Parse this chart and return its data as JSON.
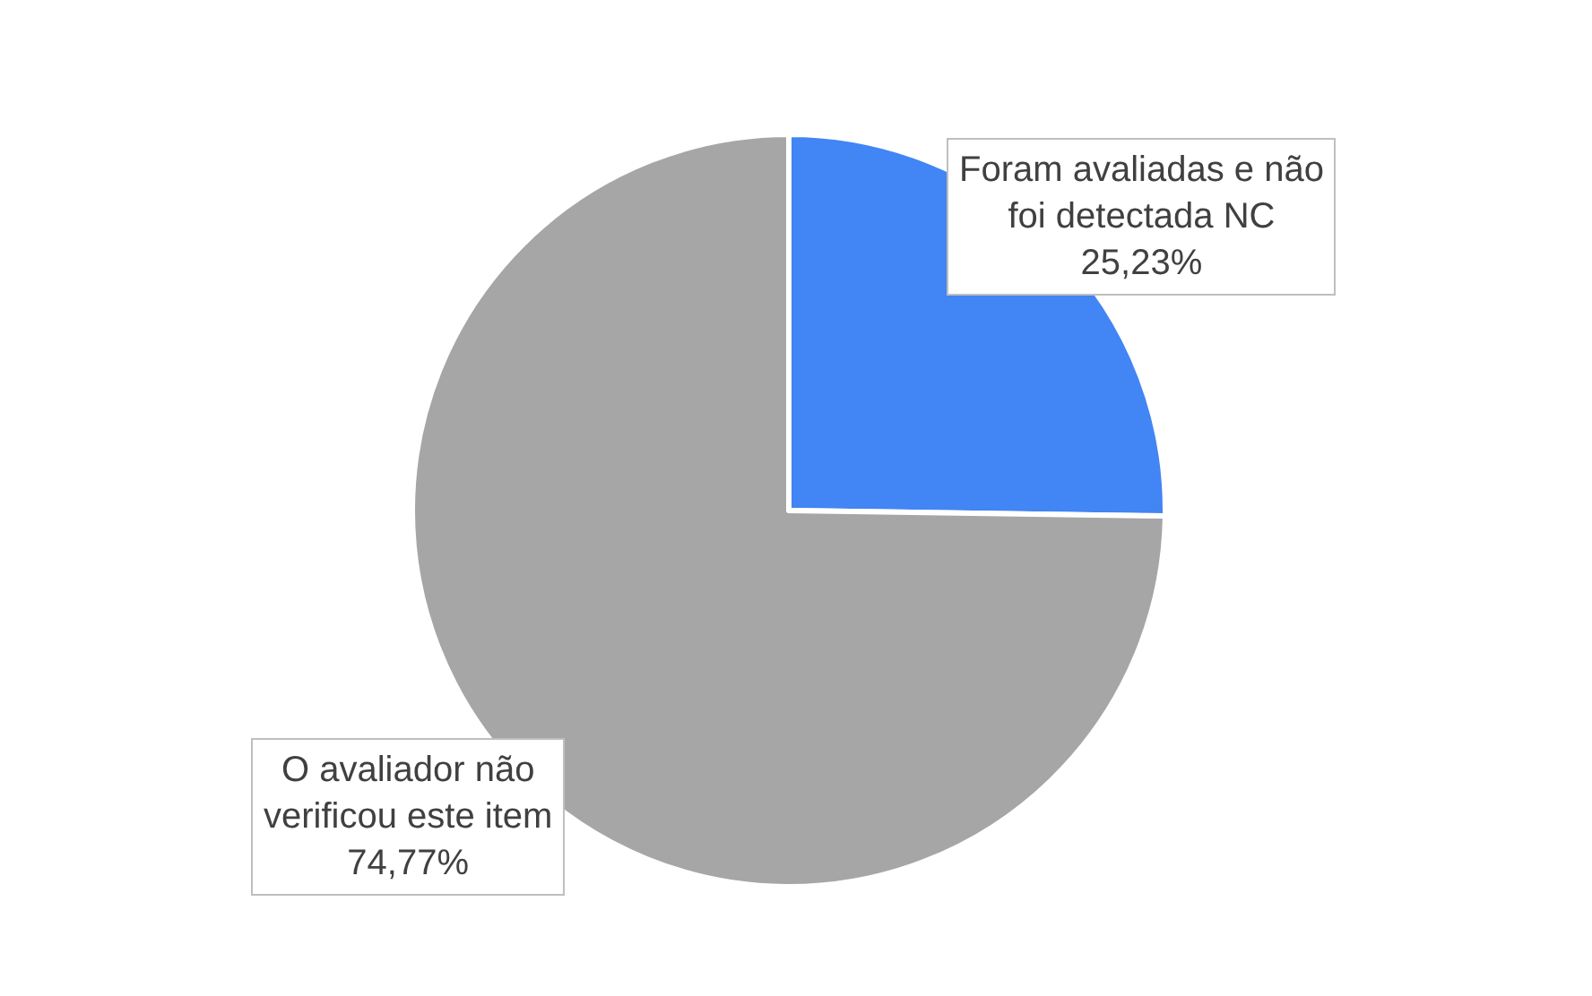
{
  "chart_data": {
    "type": "pie",
    "categories": [
      "Foram avaliadas e não foi detectada NC",
      "O avaliador não verificou este item"
    ],
    "values": [
      25.23,
      74.77
    ],
    "colors": [
      "#4285f4",
      "#a6a6a6"
    ],
    "value_labels": [
      "25,23%",
      "74,77%"
    ],
    "legend": false
  }
}
